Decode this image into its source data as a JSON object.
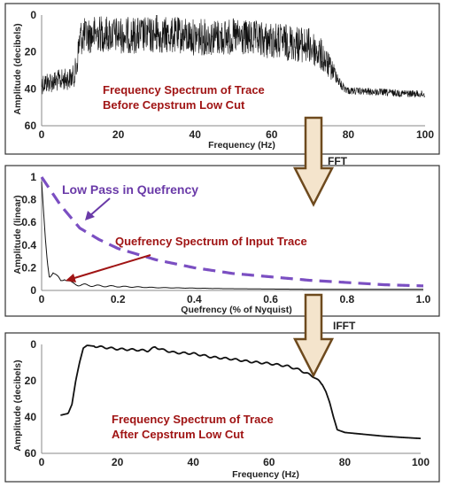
{
  "colors": {
    "trace": "#111111",
    "annotation_red": "#a01414",
    "lowpass_purple": "#7b4fc2",
    "arrow_fill": "#f4e4cc",
    "arrow_stroke": "#6e4a1e",
    "frame": "#333333"
  },
  "flow": {
    "fft_label": "FFT",
    "ifft_label": "IFFT"
  },
  "chart_data": [
    {
      "id": "top",
      "type": "line",
      "xlabel": "Frequency (Hz)",
      "ylabel": "Amplitude (decibels)",
      "xlim": [
        0,
        100
      ],
      "ylim": [
        60,
        0
      ],
      "xticks": [
        "0",
        "20",
        "40",
        "60",
        "80",
        "100"
      ],
      "yticks": [
        "0",
        "20",
        "40",
        "60"
      ],
      "annotation": [
        "Frequency Spectrum of Trace",
        "Before Cepstrum Low Cut"
      ],
      "series": [
        {
          "style": "noisy spectrum",
          "x": [
            0,
            3,
            6,
            8,
            9,
            10,
            15,
            20,
            25,
            30,
            35,
            40,
            45,
            50,
            55,
            60,
            65,
            70,
            73,
            75,
            77,
            78,
            80,
            90,
            100
          ],
          "y": [
            37,
            36,
            35,
            34,
            30,
            12,
            10,
            11,
            11,
            11,
            11,
            12,
            12,
            12,
            13,
            14,
            15,
            17,
            22,
            28,
            33,
            38,
            41,
            42,
            43
          ],
          "spread": [
            6,
            6,
            6,
            6,
            8,
            10,
            10,
            10,
            10,
            10,
            10,
            10,
            10,
            10,
            10,
            10,
            10,
            10,
            9,
            7,
            4,
            3,
            2,
            2,
            2
          ],
          "peak": {
            "x": 30,
            "y": 0
          }
        }
      ]
    },
    {
      "id": "middle",
      "type": "line",
      "xlabel": "Quefrency (% of Nyquist)",
      "ylabel": "Amplitude (linear)",
      "xlim": [
        0,
        1.0
      ],
      "ylim": [
        0,
        1
      ],
      "xticks": [
        "0",
        "0.2",
        "0.4",
        "0.6",
        "0.8",
        "1.0"
      ],
      "yticks": [
        "0",
        "0.2",
        "0.4",
        "0.6",
        "0.8",
        "1"
      ],
      "annotations": {
        "lowpass": "Low Pass in Quefrency",
        "spectrum": "Quefrency Spectrum of Input Trace"
      },
      "series": [
        {
          "style": "quefrency spectrum",
          "x": [
            0,
            0.005,
            0.01,
            0.015,
            0.02,
            0.025,
            0.03,
            0.04,
            0.05,
            0.06,
            0.08,
            0.1,
            0.15,
            0.2,
            0.3,
            0.5,
            0.7,
            1.0
          ],
          "y": [
            0.96,
            0.7,
            0.45,
            0.25,
            0.12,
            0.15,
            0.17,
            0.12,
            0.08,
            0.11,
            0.06,
            0.05,
            0.04,
            0.035,
            0.025,
            0.015,
            0.01,
            0.01
          ]
        },
        {
          "style": "low pass (dashed)",
          "x": [
            0,
            0.05,
            0.1,
            0.15,
            0.2,
            0.3,
            0.4,
            0.5,
            0.6,
            0.7,
            0.8,
            0.9,
            1.0
          ],
          "y": [
            1.0,
            0.75,
            0.55,
            0.45,
            0.37,
            0.27,
            0.2,
            0.15,
            0.12,
            0.09,
            0.07,
            0.05,
            0.04
          ]
        }
      ]
    },
    {
      "id": "bottom",
      "type": "line",
      "xlabel": "Frequency (Hz)",
      "ylabel": "Amplitude (decibels)",
      "xlim": [
        0,
        100
      ],
      "ylim": [
        60,
        0
      ],
      "xticks": [
        "0",
        "20",
        "40",
        "60",
        "80",
        "100"
      ],
      "yticks": [
        "0",
        "20",
        "40",
        "60"
      ],
      "annotation": [
        "Frequency Spectrum of Trace",
        "After Cepstrum Low Cut"
      ],
      "series": [
        {
          "style": "smooth spectrum",
          "x": [
            5,
            7,
            8,
            9,
            10,
            11,
            12,
            14,
            16,
            20,
            25,
            28,
            30,
            32,
            35,
            40,
            45,
            50,
            55,
            60,
            65,
            68,
            70,
            72,
            74,
            75,
            76,
            77,
            78,
            80,
            85,
            90,
            95,
            100
          ],
          "y": [
            39,
            38,
            33,
            20,
            10,
            2,
            0.5,
            1,
            1.5,
            2.5,
            3,
            3.5,
            1.5,
            3,
            4.5,
            5,
            7,
            8,
            9.5,
            10.5,
            12,
            14,
            16,
            18,
            22,
            26,
            32,
            40,
            47,
            48.5,
            49.5,
            50.5,
            51.2,
            51.8
          ]
        }
      ]
    }
  ]
}
